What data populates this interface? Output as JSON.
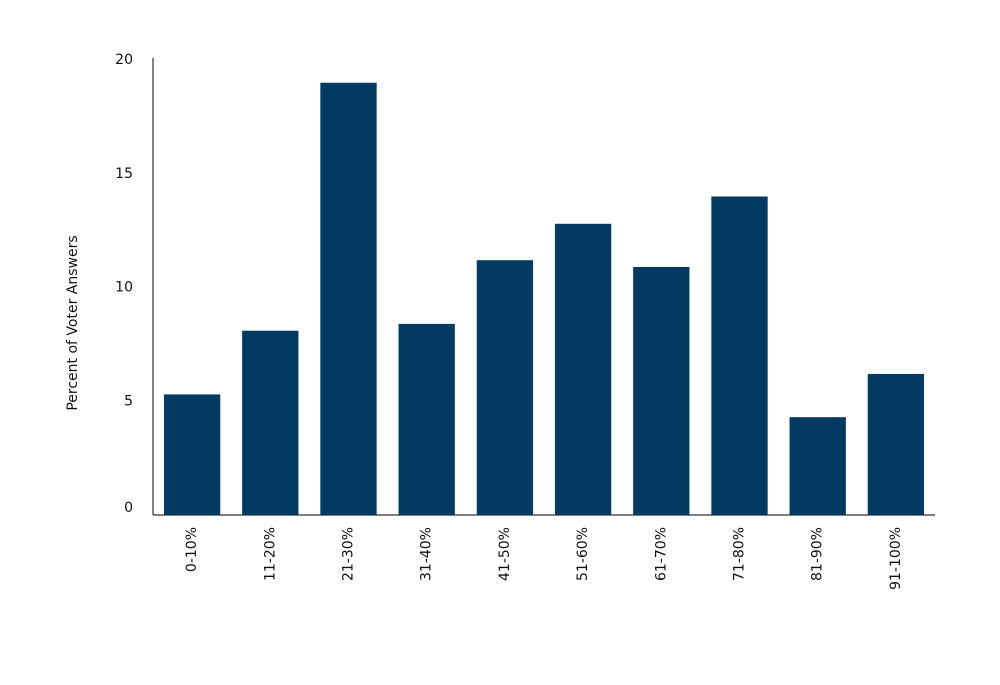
{
  "chart_data": {
    "type": "bar",
    "y_label": "Percent of Voter Answers",
    "categories": [
      "0-10%",
      "11-20%",
      "21-30%",
      "31-40%",
      "41-50%",
      "51-60%",
      "61-70%",
      "71-80%",
      "81-90%",
      "91-100%"
    ],
    "values": [
      5.3,
      8.1,
      19,
      8.4,
      11.2,
      12.8,
      10.9,
      14.0,
      4.3,
      6.2
    ],
    "color": "#033a61",
    "ylim": [
      0,
      20
    ],
    "yticks": [
      0,
      5,
      10,
      15,
      20
    ],
    "grid": false
  }
}
